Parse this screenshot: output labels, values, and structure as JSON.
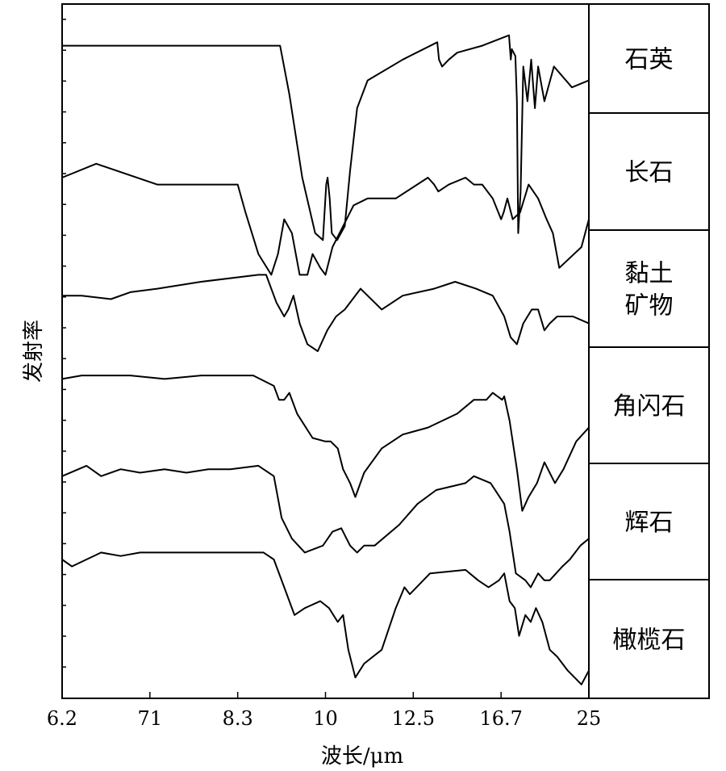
{
  "chart_data": {
    "type": "line",
    "title": "",
    "xlabel": "波长/μm",
    "ylabel": "发射率",
    "x_ticks": [
      "6.2",
      "71",
      "8.3",
      "10",
      "12.5",
      "16.7",
      "25"
    ],
    "x_range": [
      6.2,
      25
    ],
    "y_ticks_shown_without_labels": true,
    "legend_position": "right",
    "series": [
      {
        "name": "石英",
        "label_lines": [
          "石英"
        ],
        "points": [
          [
            6.2,
            0.06
          ],
          [
            6.8,
            0.06
          ],
          [
            7.5,
            0.06
          ],
          [
            8.5,
            0.06
          ],
          [
            9.12,
            0.06
          ],
          [
            9.3,
            0.13
          ],
          [
            9.55,
            0.25
          ],
          [
            9.8,
            0.33
          ],
          [
            9.95,
            0.34
          ],
          [
            10.02,
            0.26
          ],
          [
            10.06,
            0.25
          ],
          [
            10.12,
            0.28
          ],
          [
            10.18,
            0.33
          ],
          [
            10.33,
            0.34
          ],
          [
            10.55,
            0.32
          ],
          [
            10.7,
            0.24
          ],
          [
            10.9,
            0.15
          ],
          [
            11.2,
            0.11
          ],
          [
            12.2,
            0.08
          ],
          [
            13.65,
            0.055
          ],
          [
            13.73,
            0.08
          ],
          [
            13.88,
            0.09
          ],
          [
            14.2,
            0.08
          ],
          [
            14.6,
            0.07
          ],
          [
            15.8,
            0.06
          ],
          [
            17.45,
            0.045
          ],
          [
            17.62,
            0.08
          ],
          [
            17.72,
            0.065
          ],
          [
            18.05,
            0.075
          ],
          [
            18.2,
            0.14
          ],
          [
            18.32,
            0.33
          ],
          [
            18.55,
            0.27
          ],
          [
            18.8,
            0.09
          ],
          [
            19.2,
            0.14
          ],
          [
            19.55,
            0.08
          ],
          [
            19.9,
            0.15
          ],
          [
            20.2,
            0.09
          ],
          [
            20.8,
            0.14
          ],
          [
            21.7,
            0.09
          ],
          [
            23.4,
            0.12
          ],
          [
            25,
            0.11
          ]
        ]
      },
      {
        "name": "长石",
        "label_lines": [
          "长石"
        ],
        "points": [
          [
            6.2,
            0.25
          ],
          [
            6.55,
            0.23
          ],
          [
            7.2,
            0.26
          ],
          [
            8.0,
            0.26
          ],
          [
            8.3,
            0.26
          ],
          [
            8.45,
            0.3
          ],
          [
            8.7,
            0.36
          ],
          [
            8.95,
            0.39
          ],
          [
            9.08,
            0.36
          ],
          [
            9.2,
            0.31
          ],
          [
            9.35,
            0.33
          ],
          [
            9.5,
            0.39
          ],
          [
            9.65,
            0.39
          ],
          [
            9.75,
            0.36
          ],
          [
            9.9,
            0.38
          ],
          [
            10.0,
            0.39
          ],
          [
            10.2,
            0.35
          ],
          [
            10.5,
            0.32
          ],
          [
            10.8,
            0.29
          ],
          [
            11.2,
            0.28
          ],
          [
            12.0,
            0.28
          ],
          [
            13.2,
            0.25
          ],
          [
            13.5,
            0.26
          ],
          [
            13.7,
            0.27
          ],
          [
            14.2,
            0.26
          ],
          [
            15.0,
            0.25
          ],
          [
            15.4,
            0.26
          ],
          [
            15.8,
            0.26
          ],
          [
            16.3,
            0.28
          ],
          [
            16.7,
            0.31
          ],
          [
            16.95,
            0.3
          ],
          [
            17.3,
            0.28
          ],
          [
            17.8,
            0.31
          ],
          [
            18.5,
            0.3
          ],
          [
            19.3,
            0.26
          ],
          [
            20.2,
            0.28
          ],
          [
            21.0,
            0.31
          ],
          [
            21.6,
            0.33
          ],
          [
            22.2,
            0.38
          ],
          [
            24.3,
            0.35
          ],
          [
            25,
            0.31
          ]
        ]
      },
      {
        "name": "黏土矿物",
        "label_lines": [
          "黏土",
          "矿物"
        ],
        "points": [
          [
            6.2,
            0.42
          ],
          [
            6.4,
            0.42
          ],
          [
            6.7,
            0.425
          ],
          [
            6.9,
            0.415
          ],
          [
            7.2,
            0.41
          ],
          [
            7.8,
            0.4
          ],
          [
            8.7,
            0.39
          ],
          [
            8.85,
            0.39
          ],
          [
            9.05,
            0.43
          ],
          [
            9.2,
            0.45
          ],
          [
            9.28,
            0.44
          ],
          [
            9.38,
            0.42
          ],
          [
            9.5,
            0.46
          ],
          [
            9.65,
            0.49
          ],
          [
            9.85,
            0.5
          ],
          [
            10.05,
            0.47
          ],
          [
            10.3,
            0.45
          ],
          [
            10.55,
            0.44
          ],
          [
            11.0,
            0.41
          ],
          [
            11.6,
            0.44
          ],
          [
            12.2,
            0.42
          ],
          [
            13.5,
            0.41
          ],
          [
            14.5,
            0.4
          ],
          [
            15.5,
            0.41
          ],
          [
            16.3,
            0.42
          ],
          [
            17.0,
            0.45
          ],
          [
            17.6,
            0.48
          ],
          [
            18.2,
            0.49
          ],
          [
            18.8,
            0.46
          ],
          [
            19.6,
            0.44
          ],
          [
            20.2,
            0.44
          ],
          [
            20.8,
            0.47
          ],
          [
            21.3,
            0.46
          ],
          [
            22.0,
            0.45
          ],
          [
            23.5,
            0.45
          ],
          [
            25,
            0.46
          ]
        ]
      },
      {
        "name": "角闪石",
        "label_lines": [
          "角闪石"
        ],
        "points": [
          [
            6.2,
            0.54
          ],
          [
            6.4,
            0.535
          ],
          [
            6.9,
            0.535
          ],
          [
            7.3,
            0.54
          ],
          [
            7.8,
            0.535
          ],
          [
            8.2,
            0.535
          ],
          [
            8.6,
            0.535
          ],
          [
            9.0,
            0.55
          ],
          [
            9.1,
            0.57
          ],
          [
            9.2,
            0.57
          ],
          [
            9.3,
            0.56
          ],
          [
            9.45,
            0.59
          ],
          [
            9.75,
            0.625
          ],
          [
            10.0,
            0.63
          ],
          [
            10.15,
            0.63
          ],
          [
            10.35,
            0.64
          ],
          [
            10.5,
            0.67
          ],
          [
            10.7,
            0.69
          ],
          [
            10.85,
            0.71
          ],
          [
            11.1,
            0.675
          ],
          [
            11.6,
            0.64
          ],
          [
            12.2,
            0.62
          ],
          [
            13.2,
            0.61
          ],
          [
            14.6,
            0.59
          ],
          [
            15.4,
            0.57
          ],
          [
            16.0,
            0.57
          ],
          [
            16.3,
            0.56
          ],
          [
            16.8,
            0.57
          ],
          [
            17.0,
            0.565
          ],
          [
            17.5,
            0.6
          ],
          [
            18.2,
            0.67
          ],
          [
            18.7,
            0.73
          ],
          [
            19.3,
            0.71
          ],
          [
            20.1,
            0.69
          ],
          [
            20.8,
            0.66
          ],
          [
            21.8,
            0.69
          ],
          [
            22.6,
            0.67
          ],
          [
            23.8,
            0.63
          ],
          [
            25,
            0.61
          ]
        ]
      },
      {
        "name": "辉石",
        "label_lines": [
          "辉石"
        ],
        "points": [
          [
            6.2,
            0.68
          ],
          [
            6.45,
            0.665
          ],
          [
            6.6,
            0.68
          ],
          [
            6.8,
            0.67
          ],
          [
            7.0,
            0.675
          ],
          [
            7.3,
            0.67
          ],
          [
            7.6,
            0.675
          ],
          [
            7.9,
            0.67
          ],
          [
            8.2,
            0.67
          ],
          [
            8.7,
            0.665
          ],
          [
            9.0,
            0.68
          ],
          [
            9.15,
            0.74
          ],
          [
            9.35,
            0.77
          ],
          [
            9.6,
            0.79
          ],
          [
            9.95,
            0.78
          ],
          [
            10.2,
            0.76
          ],
          [
            10.45,
            0.755
          ],
          [
            10.7,
            0.78
          ],
          [
            10.9,
            0.79
          ],
          [
            11.1,
            0.78
          ],
          [
            11.4,
            0.78
          ],
          [
            12.1,
            0.75
          ],
          [
            12.7,
            0.72
          ],
          [
            13.6,
            0.7
          ],
          [
            15.0,
            0.69
          ],
          [
            15.4,
            0.68
          ],
          [
            16.2,
            0.69
          ],
          [
            17.0,
            0.72
          ],
          [
            17.5,
            0.76
          ],
          [
            18.1,
            0.82
          ],
          [
            19.0,
            0.83
          ],
          [
            19.5,
            0.84
          ],
          [
            20.2,
            0.82
          ],
          [
            20.8,
            0.83
          ],
          [
            21.3,
            0.83
          ],
          [
            22.5,
            0.81
          ],
          [
            23.2,
            0.8
          ],
          [
            24.2,
            0.78
          ],
          [
            25,
            0.77
          ]
        ]
      },
      {
        "name": "橄榄石",
        "label_lines": [
          "橄榄石"
        ],
        "points": [
          [
            6.2,
            0.8
          ],
          [
            6.3,
            0.81
          ],
          [
            6.45,
            0.8
          ],
          [
            6.6,
            0.79
          ],
          [
            6.8,
            0.795
          ],
          [
            7.0,
            0.79
          ],
          [
            8.0,
            0.79
          ],
          [
            8.8,
            0.79
          ],
          [
            9.0,
            0.8
          ],
          [
            9.2,
            0.84
          ],
          [
            9.4,
            0.88
          ],
          [
            9.6,
            0.87
          ],
          [
            9.9,
            0.86
          ],
          [
            10.1,
            0.87
          ],
          [
            10.35,
            0.89
          ],
          [
            10.5,
            0.88
          ],
          [
            10.65,
            0.93
          ],
          [
            10.85,
            0.97
          ],
          [
            11.1,
            0.95
          ],
          [
            11.6,
            0.93
          ],
          [
            12.0,
            0.87
          ],
          [
            12.25,
            0.84
          ],
          [
            12.4,
            0.85
          ],
          [
            13.3,
            0.82
          ],
          [
            15.0,
            0.815
          ],
          [
            15.6,
            0.83
          ],
          [
            16.1,
            0.84
          ],
          [
            16.6,
            0.83
          ],
          [
            17.0,
            0.82
          ],
          [
            17.5,
            0.86
          ],
          [
            18.0,
            0.87
          ],
          [
            18.4,
            0.91
          ],
          [
            19.0,
            0.88
          ],
          [
            19.5,
            0.89
          ],
          [
            20.0,
            0.87
          ],
          [
            20.6,
            0.89
          ],
          [
            21.3,
            0.93
          ],
          [
            22.0,
            0.94
          ],
          [
            23.0,
            0.96
          ],
          [
            24.3,
            0.98
          ],
          [
            25,
            0.96
          ]
        ]
      }
    ]
  }
}
